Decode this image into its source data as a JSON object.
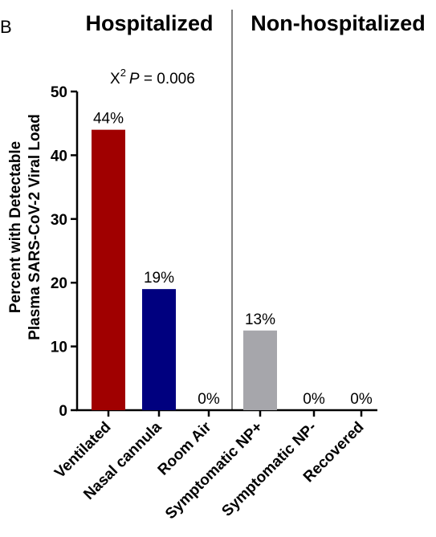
{
  "panel_letter": "B",
  "groups": [
    {
      "title": "Hospitalized"
    },
    {
      "title": "Non-hospitalized"
    }
  ],
  "stat": {
    "symbol": "X",
    "superscript": "2",
    "p_label": "P",
    "text": " = 0.006"
  },
  "chart_data": {
    "type": "bar",
    "categories": [
      "Ventilated",
      "Nasal cannula",
      "Room Air",
      "Symptomatic NP+",
      "Symptomatic NP-",
      "Recovered"
    ],
    "values": [
      44,
      19,
      0,
      12.5,
      0,
      0
    ],
    "data_labels": [
      "44%",
      "19%",
      "0%",
      "13%",
      "0%",
      "0%"
    ],
    "colors": [
      "#a00000",
      "#00007f",
      "#ffffff",
      "#a6a6ab",
      "#ffffff",
      "#ffffff"
    ],
    "ylabel_line1": "Percent with Detectable",
    "ylabel_line2": "Plasma SARS-CoV-2 Viral Load",
    "ylim": [
      0,
      50
    ],
    "yticks": [
      0,
      10,
      20,
      30,
      40,
      50
    ],
    "group_divider_after_index": 2,
    "grid": false
  }
}
